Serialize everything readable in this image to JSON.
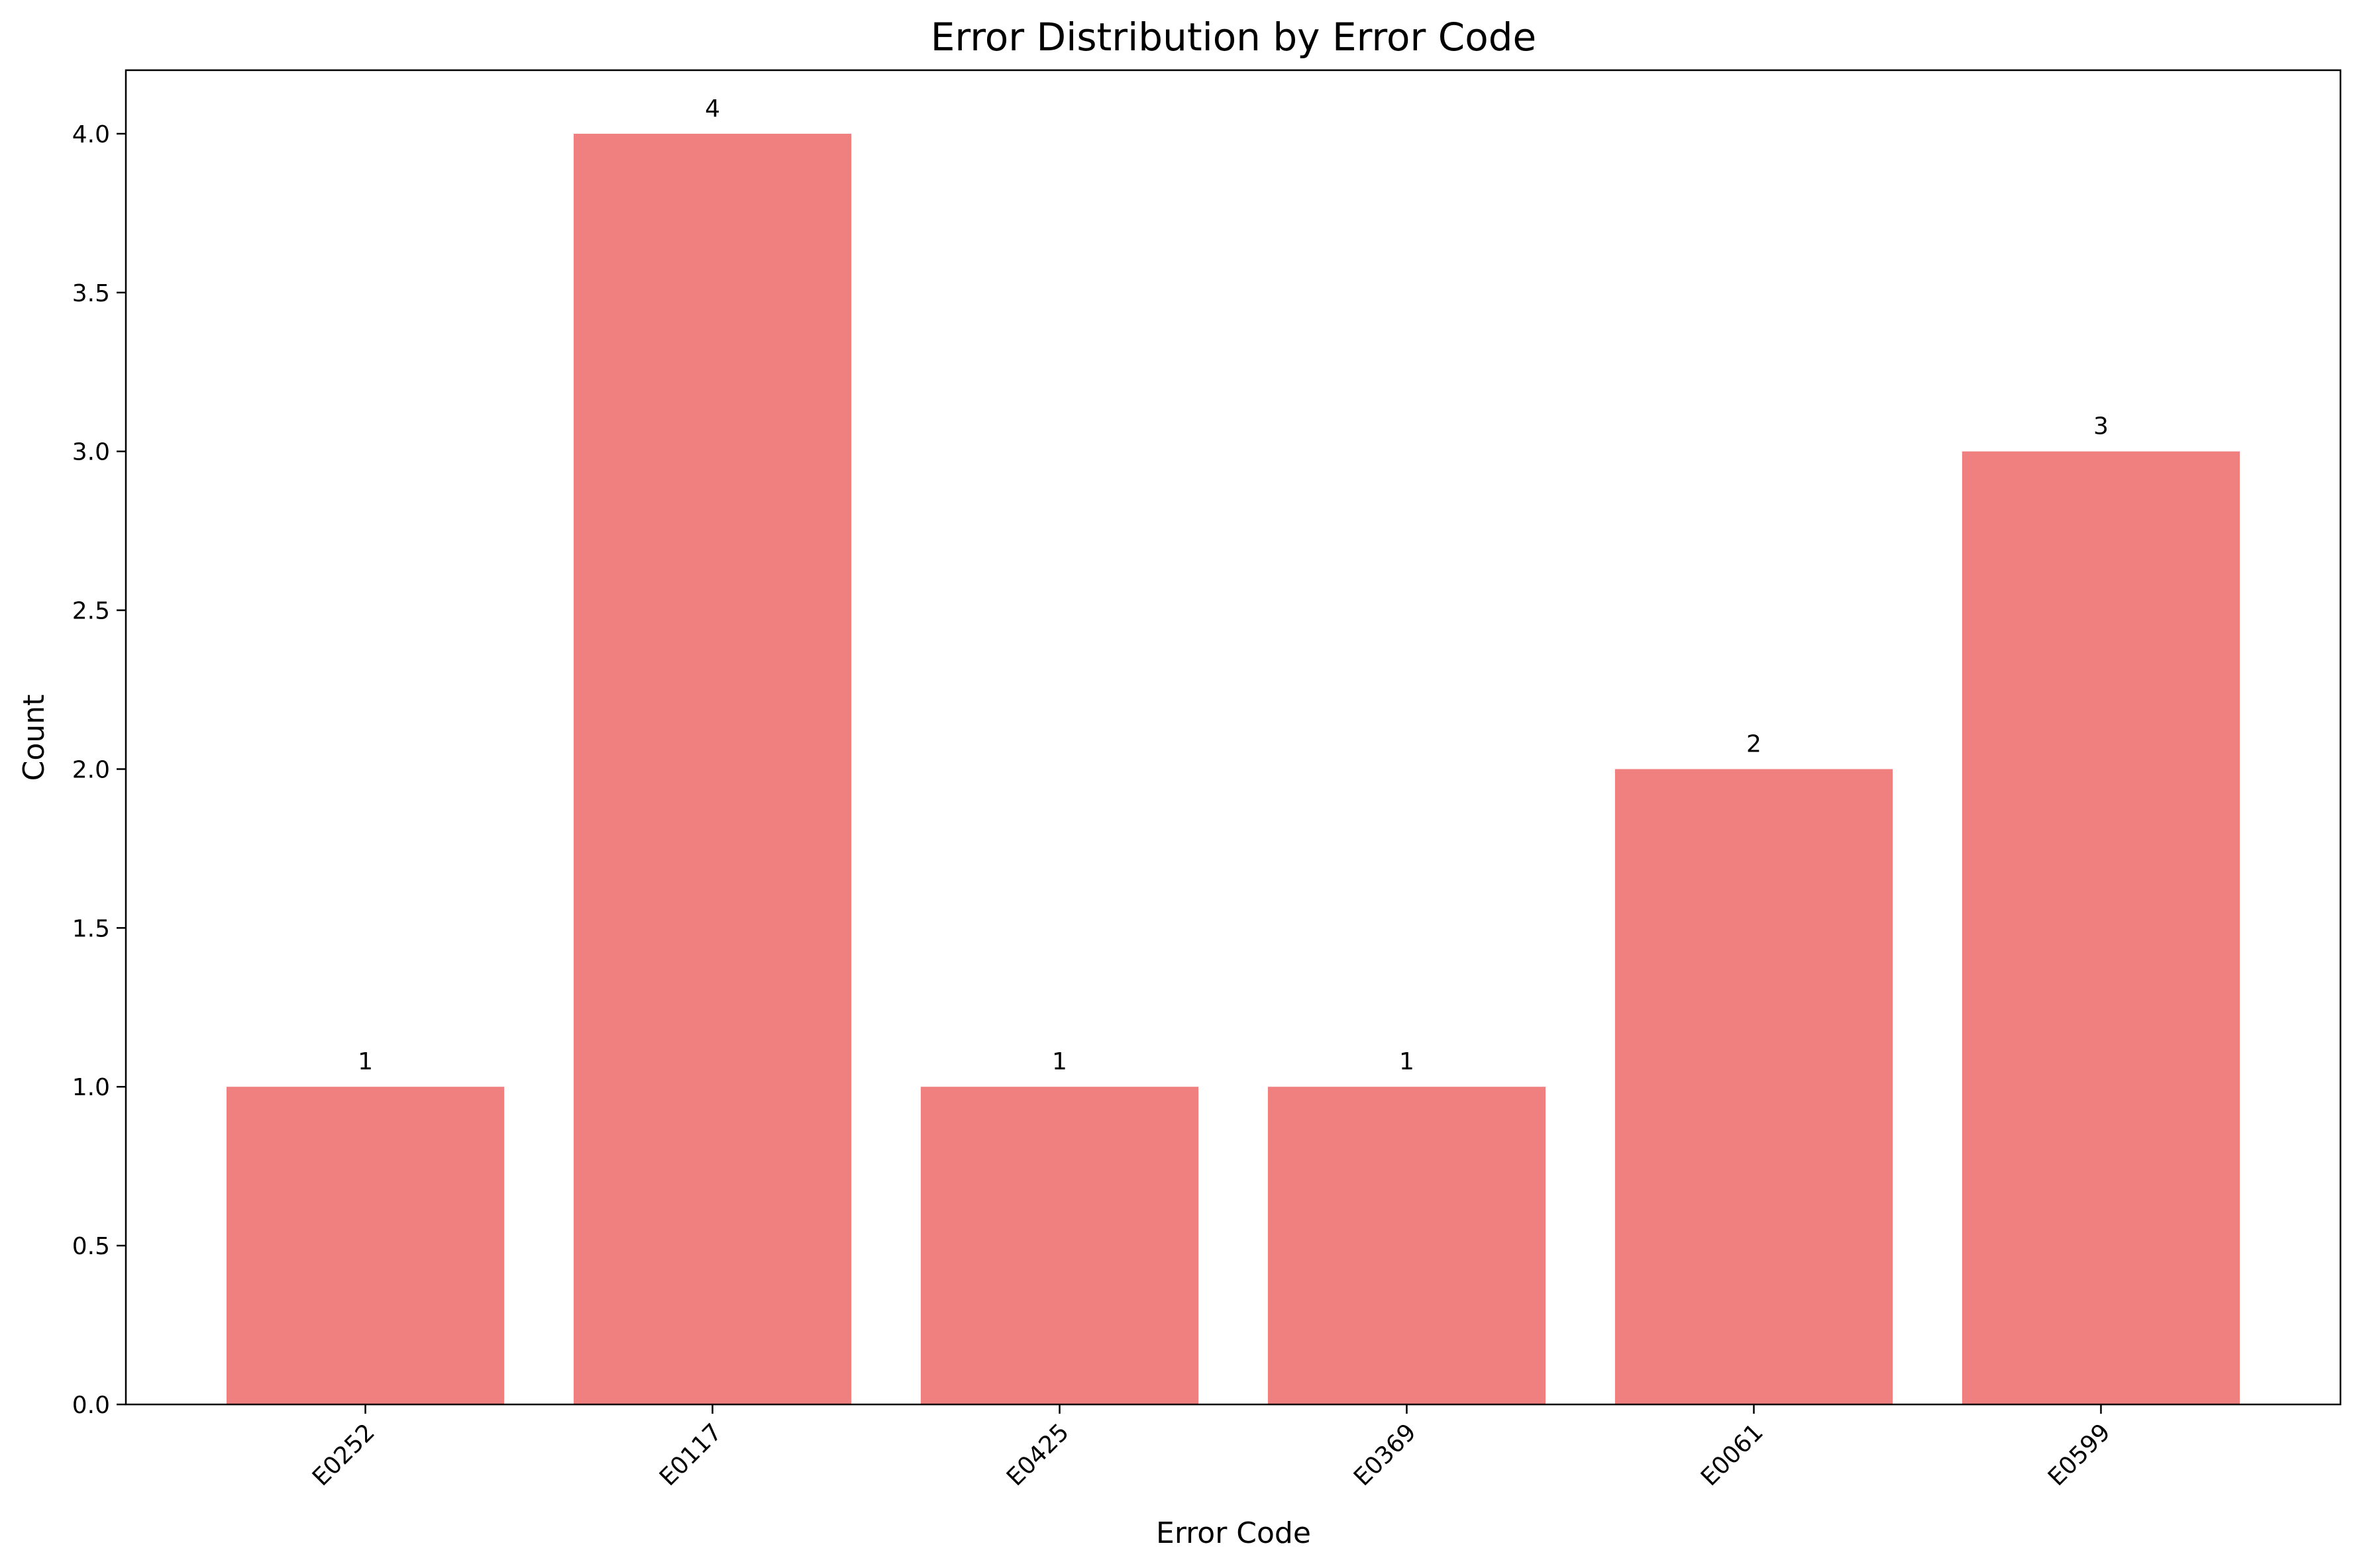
{
  "chart_data": {
    "type": "bar",
    "title": "Error Distribution by Error Code",
    "xlabel": "Error Code",
    "ylabel": "Count",
    "categories": [
      "E0252",
      "E0117",
      "E0425",
      "E0369",
      "E0061",
      "E0599"
    ],
    "values": [
      1,
      4,
      1,
      1,
      2,
      3
    ],
    "data_labels": [
      "1",
      "4",
      "1",
      "1",
      "2",
      "3"
    ],
    "ylim": [
      0,
      4.2
    ],
    "yticks": [
      0,
      0.5,
      1,
      1.5,
      2,
      2.5,
      3,
      3.5,
      4
    ],
    "ytick_labels": [
      "0.0",
      "0.5",
      "1.0",
      "1.5",
      "2.0",
      "2.5",
      "3.0",
      "3.5",
      "4.0"
    ],
    "xtick_rotation": -45,
    "bar_color": "#f08080",
    "grid": false,
    "legend": "none"
  }
}
